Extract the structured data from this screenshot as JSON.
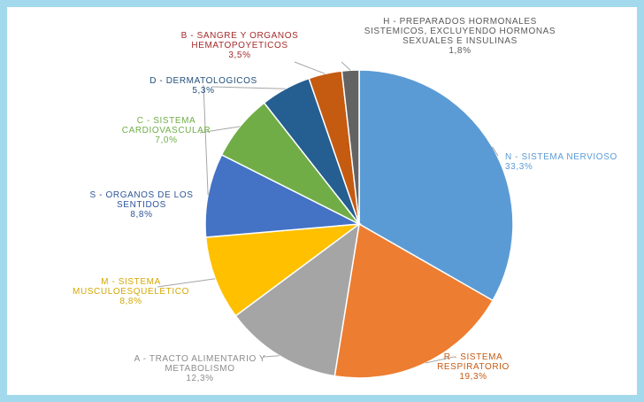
{
  "chart_data": {
    "type": "pie",
    "start_angle": "top",
    "direction": "clockwise",
    "slices": [
      {
        "label": [
          "N - SISTEMA NERVIOSO"
        ],
        "value": 33.3,
        "value_label": "33,3%",
        "color": "#5b9bd5",
        "label_color": "#5b9bd5"
      },
      {
        "label": [
          "R - SISTEMA",
          "RESPIRATORIO"
        ],
        "value": 19.3,
        "value_label": "19,3%",
        "color": "#ed7d31",
        "label_color": "#c55a11"
      },
      {
        "label": [
          "A - TRACTO ALIMENTARIO Y",
          "METABOLISMO"
        ],
        "value": 12.3,
        "value_label": "12,3%",
        "color": "#a5a5a5",
        "label_color": "#8c8c8c"
      },
      {
        "label": [
          "M - SISTEMA",
          "MUSCULOESQUELETICO"
        ],
        "value": 8.8,
        "value_label": "8,8%",
        "color": "#ffc000",
        "label_color": "#d4a800"
      },
      {
        "label": [
          "S - ORGANOS DE LOS",
          "SENTIDOS"
        ],
        "value": 8.8,
        "value_label": "8,8%",
        "color": "#4472c4",
        "label_color": "#2f5597"
      },
      {
        "label": [
          "C - SISTEMA",
          "CARDIOVASCULAR"
        ],
        "value": 7.0,
        "value_label": "7,0%",
        "color": "#70ad47",
        "label_color": "#70ad47"
      },
      {
        "label": [
          "D - DERMATOLOGICOS"
        ],
        "value": 5.3,
        "value_label": "5,3%",
        "color": "#255e91",
        "label_color": "#1f4e79"
      },
      {
        "label": [
          "B - SANGRE Y ORGANOS",
          "HEMATOPOYETICOS"
        ],
        "value": 3.5,
        "value_label": "3,5%",
        "color": "#c55a11",
        "label_color": "#a52a2a"
      },
      {
        "label": [
          "H - PREPARADOS HORMONALES",
          "SISTEMICOS, EXCLUYENDO HORMONAS",
          "SEXUALES E INSULINAS"
        ],
        "value": 1.8,
        "value_label": "1,8%",
        "color": "#636363",
        "label_color": "#595959"
      }
    ]
  }
}
